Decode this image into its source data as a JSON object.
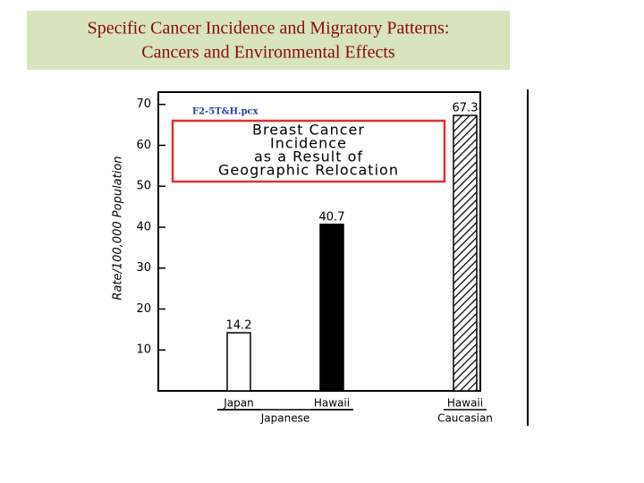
{
  "slide_title": [
    "Specific Cancer Incidence and Migratory Patterns:",
    "Cancers and Environmental Effects"
  ],
  "chart_data": {
    "type": "bar",
    "file_label": "F2-5T&H.pcx",
    "title": [
      "Breast Cancer",
      "Incidence",
      "as a Result of",
      "Geographic Relocation"
    ],
    "y_label": "Rate/100,000 Population",
    "categories": [
      "Japan",
      "Hawaii",
      "Hawaii"
    ],
    "groups": [
      "Japanese",
      "Japanese",
      "Caucasian"
    ],
    "values": [
      14.2,
      40.7,
      67.3
    ],
    "bar_styles": [
      "open",
      "solid",
      "hatched"
    ],
    "ylim": [
      0,
      73
    ],
    "yticks": [
      10,
      20,
      30,
      40,
      50,
      60,
      70
    ]
  }
}
